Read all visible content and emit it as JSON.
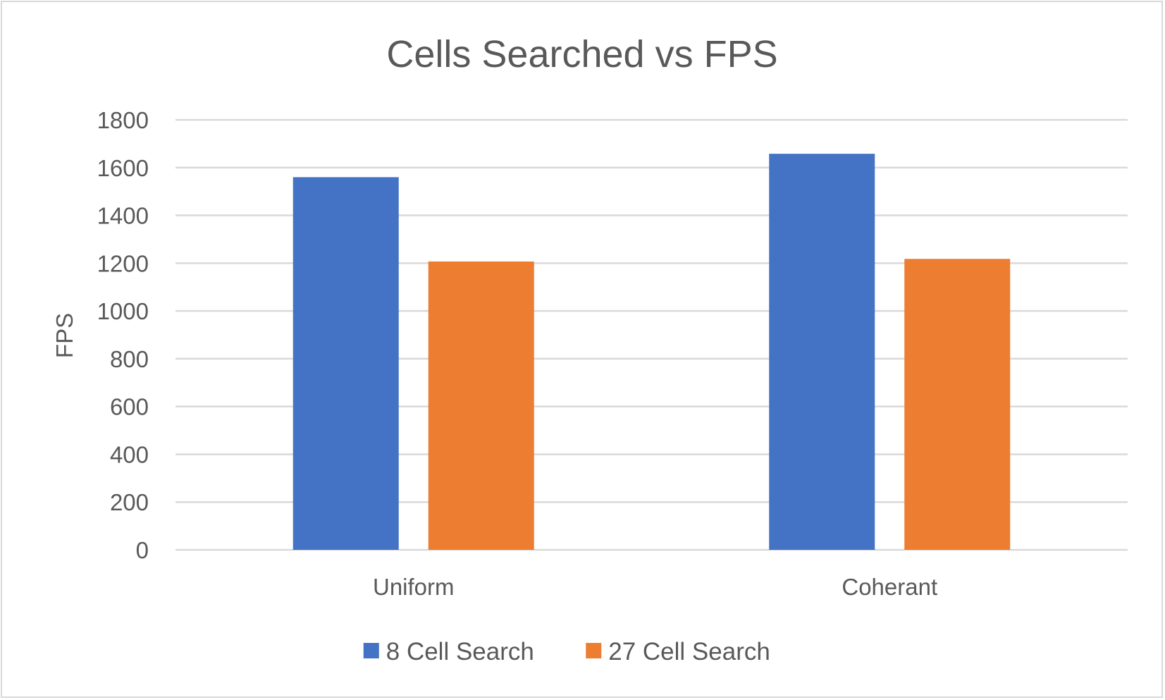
{
  "chart_data": {
    "type": "bar",
    "title": "Cells Searched vs FPS",
    "xlabel": "",
    "ylabel": "FPS",
    "categories": [
      "Uniform",
      "Coherant"
    ],
    "series": [
      {
        "name": "8 Cell Search",
        "values": [
          1560,
          1658
        ],
        "color": "#4472C4"
      },
      {
        "name": "27 Cell Search",
        "values": [
          1207,
          1218
        ],
        "color": "#ED7D31"
      }
    ],
    "ylim": [
      0,
      1800
    ],
    "yticks": [
      0,
      200,
      400,
      600,
      800,
      1000,
      1200,
      1400,
      1600,
      1800
    ],
    "grid": true,
    "legend_position": "bottom"
  }
}
